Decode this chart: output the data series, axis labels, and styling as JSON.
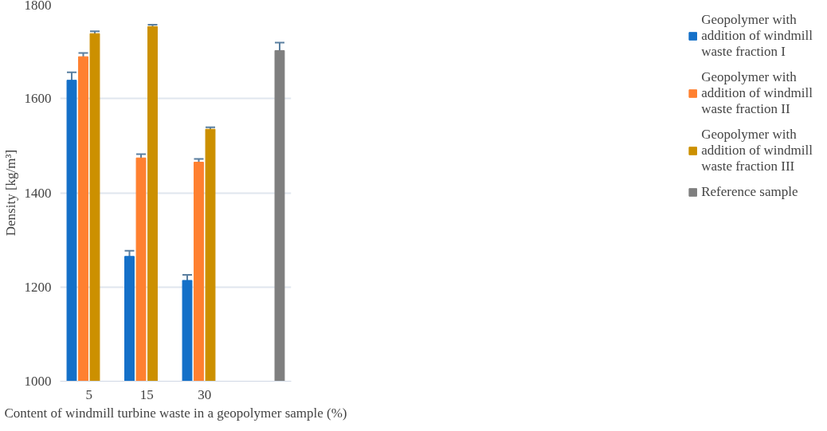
{
  "chart_data": {
    "type": "bar",
    "xlabel": "Content of windmill turbine waste in a geopolymer sample (%)",
    "ylabel": "Density [kg/m³]",
    "categories": [
      "5",
      "15",
      "30",
      null
    ],
    "series": [
      {
        "name": "Geopolymer with addition of windmill waste fraction I",
        "color": "#1470c8",
        "values": [
          1639,
          1265,
          1214,
          null
        ],
        "errors": [
          17,
          12,
          12,
          null
        ]
      },
      {
        "name": "Geopolymer with addition of windmill waste fraction II",
        "color": "#ff8030",
        "values": [
          1689,
          1474,
          1465,
          null
        ],
        "errors": [
          8,
          8,
          7,
          null
        ]
      },
      {
        "name": "Geopolymer with addition of windmill waste fraction III",
        "color": "#cc9000",
        "values": [
          1738,
          1753,
          1535,
          null
        ],
        "errors": [
          5,
          4,
          4,
          null
        ]
      },
      {
        "name": "Reference sample",
        "color": "#7f7f7f",
        "values": [
          null,
          null,
          null,
          1702
        ],
        "errors": [
          null,
          null,
          null,
          17
        ]
      }
    ],
    "ylim": [
      1000,
      1800
    ],
    "yticks": [
      1000,
      1200,
      1400,
      1600,
      1800
    ],
    "grid": "y",
    "legend": "right"
  }
}
